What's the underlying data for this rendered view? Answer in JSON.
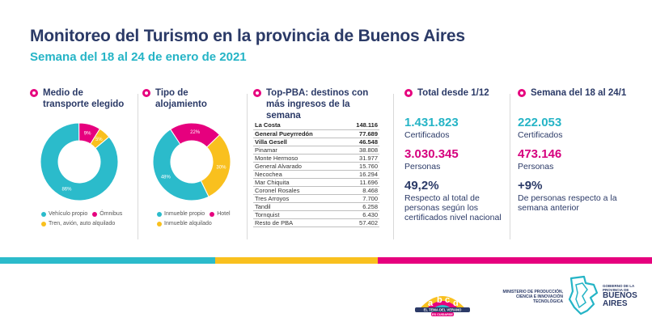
{
  "header": {
    "title": "Monitoreo del Turismo en la provincia de Buenos Aires",
    "subtitle": "Semana del 18 al 24 de enero de 2021"
  },
  "transport": {
    "title": "Medio de transporte elegido",
    "slices": [
      {
        "label": "Vehículo propio",
        "value": 86,
        "pct_label": "86%",
        "color": "#2bbbcb"
      },
      {
        "label": "Ómnibus",
        "value": 9,
        "pct_label": "9%",
        "color": "#e6007e"
      },
      {
        "label": "Tren, avión, auto alquilado",
        "value": 5,
        "pct_label": "5%",
        "color": "#f9c01e"
      }
    ]
  },
  "lodging": {
    "title": "Tipo de alojamiento",
    "slices": [
      {
        "label": "Inmueble propio",
        "value": 48,
        "pct_label": "48%",
        "color": "#2bbbcb"
      },
      {
        "label": "Hotel",
        "value": 22,
        "pct_label": "22%",
        "color": "#e6007e"
      },
      {
        "label": "Inmueble alquilado",
        "value": 30,
        "pct_label": "30%",
        "color": "#f9c01e"
      }
    ]
  },
  "top_destinations": {
    "title": "Top-PBA: destinos con más ingresos de la semana",
    "rows": [
      {
        "name": "La Costa",
        "value": "148.116",
        "bold": true
      },
      {
        "name": "General Pueyrredón",
        "value": "77.689",
        "bold": true
      },
      {
        "name": "Villa Gesell",
        "value": "46.548",
        "bold": true
      },
      {
        "name": "Pinamar",
        "value": "38.808",
        "bold": false
      },
      {
        "name": "Monte Hermoso",
        "value": "31.977",
        "bold": false
      },
      {
        "name": "General Alvarado",
        "value": "15.760",
        "bold": false
      },
      {
        "name": "Necochea",
        "value": "16.294",
        "bold": false
      },
      {
        "name": "Mar Chiquita",
        "value": "11.696",
        "bold": false
      },
      {
        "name": "Coronel Rosales",
        "value": "8.468",
        "bold": false
      },
      {
        "name": "Tres Arroyos",
        "value": "7.700",
        "bold": false
      },
      {
        "name": "Tandil",
        "value": "6.258",
        "bold": false
      },
      {
        "name": "Tornquist",
        "value": "6.430",
        "bold": false
      },
      {
        "name": "Resto de PBA",
        "value": "57.402",
        "bold": false
      }
    ]
  },
  "total": {
    "title": "Total desde 1/12",
    "certificates_value": "1.431.823",
    "certificates_label": "Certificados",
    "people_value": "3.030.345",
    "people_label": "Personas",
    "share_value": "49,2%",
    "share_label": "Respecto al total de personas según los certificados nivel nacional"
  },
  "week": {
    "title": "Semana del 18 al 24/1",
    "certificates_value": "222.053",
    "certificates_label": "Certificados",
    "people_value": "473.146",
    "people_label": "Personas",
    "change_value": "+9%",
    "change_label": "De personas respecto a la semana anterior"
  },
  "footer": {
    "campaign_letters": "abcd",
    "campaign_line1": "EL TEMA DEL VERANO",
    "campaign_line2": "ES CUIDARSE",
    "ministry": "MINISTERIO DE PRODUCCIÓN, CIENCIA E INNOVACIÓN TECNOLÓGICA",
    "gov_top": "GOBIERNO DE LA PROVINCIA DE",
    "gov_name": "BUENOS AIRES"
  },
  "colors": {
    "stripe": [
      "#2bbbcb",
      "#f9c01e",
      "#e6007e"
    ]
  }
}
